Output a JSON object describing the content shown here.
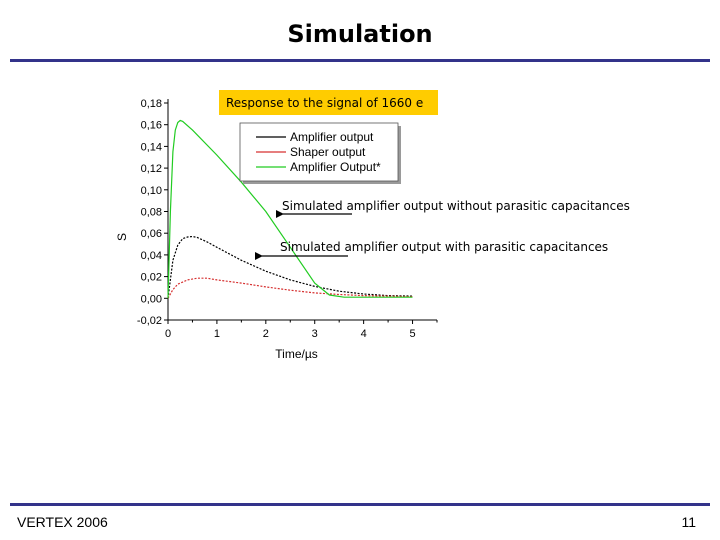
{
  "slide": {
    "title": "Simulation",
    "footer_left": "VERTEX 2006",
    "page_number": "11",
    "rule_color": "#33338a"
  },
  "chart_data": {
    "type": "line",
    "xlabel": "Time/µs",
    "ylabel": "S",
    "xlim": [
      0,
      5.5
    ],
    "ylim": [
      -0.02,
      0.18
    ],
    "xticks": [
      "0",
      "1",
      "2",
      "3",
      "4",
      "5"
    ],
    "yticks": [
      "-0,02",
      "0,00",
      "0,02",
      "0,04",
      "0,06",
      "0,08",
      "0,10",
      "0,12",
      "0,14",
      "0,16",
      "0,18"
    ],
    "legend_position": "top",
    "grid": false,
    "series": [
      {
        "name": "Amplifier output",
        "color": "#000000",
        "dashed": true,
        "x": [
          0,
          0.1,
          0.2,
          0.3,
          0.4,
          0.5,
          0.6,
          0.8,
          1.0,
          1.25,
          1.5,
          2.0,
          2.5,
          3.0,
          3.5,
          4.0,
          4.5,
          5.0
        ],
        "y": [
          0,
          0.035,
          0.049,
          0.055,
          0.0565,
          0.057,
          0.056,
          0.052,
          0.047,
          0.041,
          0.035,
          0.025,
          0.017,
          0.011,
          0.0065,
          0.004,
          0.0025,
          0.002
        ]
      },
      {
        "name": "Shaper output",
        "color": "#d63030",
        "dashed": true,
        "x": [
          0,
          0.1,
          0.2,
          0.4,
          0.6,
          0.8,
          1.0,
          1.25,
          1.5,
          2.0,
          2.5,
          3.0,
          3.5,
          4.0,
          4.5,
          5.0
        ],
        "y": [
          0,
          0.008,
          0.013,
          0.017,
          0.0185,
          0.0185,
          0.017,
          0.0155,
          0.014,
          0.0105,
          0.0075,
          0.005,
          0.0035,
          0.0025,
          0.002,
          0.0015
        ]
      },
      {
        "name": "Amplifier Output*",
        "color": "#22cc22",
        "dashed": false,
        "x": [
          0,
          0.05,
          0.1,
          0.15,
          0.2,
          0.25,
          0.3,
          0.5,
          1.0,
          1.5,
          2.0,
          2.5,
          3.0,
          3.3,
          3.6,
          4.0,
          4.5,
          5.0
        ],
        "y": [
          0,
          0.08,
          0.135,
          0.155,
          0.162,
          0.164,
          0.163,
          0.155,
          0.132,
          0.107,
          0.08,
          0.047,
          0.014,
          0.003,
          0.001,
          0.001,
          0.001,
          0.001
        ]
      }
    ],
    "annotations": {
      "response_box": "Response to the signal of 1660 e",
      "without_parasitic": "Simulated amplifier output without parasitic capacitances",
      "with_parasitic": "Simulated amplifier output with parasitic capacitances"
    },
    "colors": {
      "annotation_box": "#ffcc00"
    }
  }
}
